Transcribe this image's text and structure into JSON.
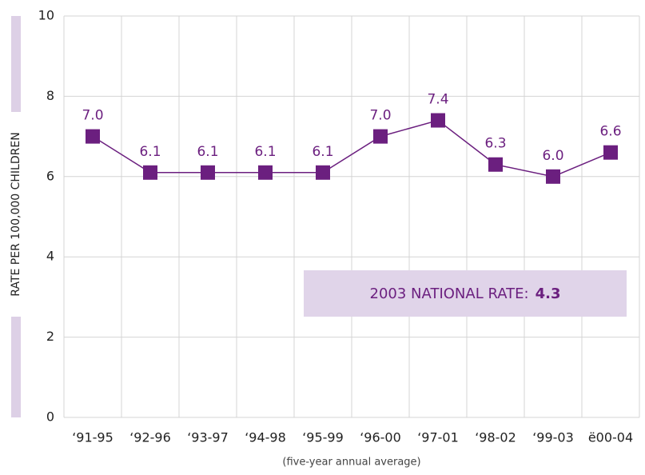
{
  "chart_data": {
    "type": "line",
    "y_label": "RATE PER 100,000 CHILDREN",
    "x_label": "(five-year annual average)",
    "categories": [
      "‘91-95",
      "‘92-96",
      "‘93-97",
      "‘94-98",
      "‘95-99",
      "‘96-00",
      "‘97-01",
      "‘98-02",
      "‘99-03",
      "ë00-04"
    ],
    "values": [
      7,
      6.1,
      6.1,
      6.1,
      6.1,
      7,
      7.4,
      6.3,
      6,
      6.6
    ],
    "value_labels": [
      "7.0",
      "6.1",
      "6.1",
      "6.1",
      "6.1",
      "7.0",
      "7.4",
      "6.3",
      "6.0",
      "6.6"
    ],
    "color": "#6b1f7f",
    "ylim": [
      0,
      10
    ],
    "yticks": [
      0,
      2,
      4,
      6,
      8,
      10
    ],
    "grid": true,
    "annotation": {
      "label": "2003 NATIONAL RATE:",
      "value": 4.3
    }
  }
}
